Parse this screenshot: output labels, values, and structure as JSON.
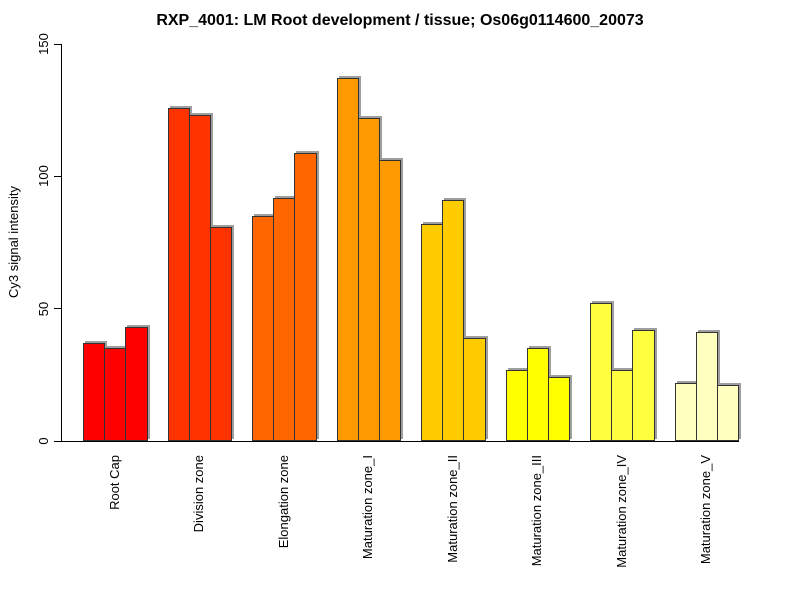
{
  "chart_data": {
    "type": "bar",
    "title": "RXP_4001: LM Root development / tissue; Os06g0114600_20073",
    "xlabel": "",
    "ylabel": "Cy3 signal intensity",
    "ylim": [
      0,
      150
    ],
    "yticks": [
      0,
      50,
      100,
      150
    ],
    "grid": false,
    "legend_position": "none",
    "bars_per_group": 3,
    "bar_style": {
      "border_color": "#333333",
      "shadow_color": "#9e9e9e"
    },
    "groups": [
      {
        "label": "Root Cap",
        "color": "#FF0000",
        "values": [
          37,
          35,
          43
        ]
      },
      {
        "label": "Division zone",
        "color": "#FF3300",
        "values": [
          126,
          123,
          81
        ]
      },
      {
        "label": "Elongation zone",
        "color": "#FF6600",
        "values": [
          85,
          92,
          109
        ]
      },
      {
        "label": "Maturation zone_I",
        "color": "#FF9900",
        "values": [
          137,
          122,
          106
        ]
      },
      {
        "label": "Maturation zone_II",
        "color": "#FFCC00",
        "values": [
          82,
          91,
          39
        ]
      },
      {
        "label": "Maturation zone_III",
        "color": "#FFFF00",
        "values": [
          27,
          35,
          24
        ]
      },
      {
        "label": "Maturation zone_IV",
        "color": "#FFFF40",
        "values": [
          52,
          27,
          42
        ]
      },
      {
        "label": "Maturation zone_V",
        "color": "#FFFFBF",
        "values": [
          22,
          41,
          21
        ]
      }
    ]
  }
}
